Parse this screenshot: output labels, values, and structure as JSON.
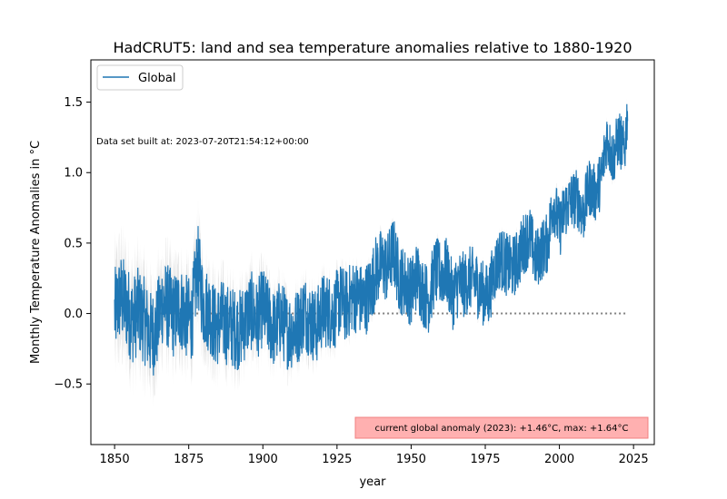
{
  "chart_data": {
    "type": "line",
    "title": "HadCRUT5: land and sea temperature anomalies relative to 1880-1920",
    "xlabel": "year",
    "ylabel": "Monthly Temperature Anomalies in °C",
    "xlim": [
      1842,
      2032
    ],
    "ylim": [
      -0.93,
      1.8
    ],
    "x_ticks": [
      1850,
      1875,
      1900,
      1925,
      1950,
      1975,
      2000,
      2025
    ],
    "y_ticks": [
      -0.5,
      0.0,
      0.5,
      1.0,
      1.5
    ],
    "x_tick_labels": [
      "1850",
      "1875",
      "1900",
      "1925",
      "1950",
      "1975",
      "2000",
      "2025"
    ],
    "y_tick_labels": [
      "−0.5",
      "0.0",
      "0.5",
      "1.0",
      "1.5"
    ],
    "grid": false,
    "legend_position": "top-left",
    "note": "Data set built at: 2023-07-20T21:54:12+00:00",
    "annotation": "current global anomaly (2023): +1.46°C, max: +1.64°C",
    "series": [
      {
        "name": "Global",
        "color": "#1f77b4",
        "style": "monthly line with light-grey uncertainty band",
        "points": [
          [
            1850,
            0.0
          ],
          [
            1852,
            0.12
          ],
          [
            1854,
            0.05
          ],
          [
            1856,
            -0.05
          ],
          [
            1858,
            0.02
          ],
          [
            1860,
            -0.05
          ],
          [
            1862,
            -0.15
          ],
          [
            1864,
            -0.12
          ],
          [
            1866,
            0.08
          ],
          [
            1868,
            0.05
          ],
          [
            1870,
            -0.02
          ],
          [
            1872,
            0.05
          ],
          [
            1874,
            -0.02
          ],
          [
            1876,
            -0.05
          ],
          [
            1878,
            0.35
          ],
          [
            1880,
            0.05
          ],
          [
            1882,
            0.02
          ],
          [
            1884,
            -0.1
          ],
          [
            1886,
            -0.05
          ],
          [
            1888,
            -0.08
          ],
          [
            1890,
            -0.1
          ],
          [
            1892,
            -0.12
          ],
          [
            1894,
            -0.05
          ],
          [
            1896,
            0.02
          ],
          [
            1898,
            -0.05
          ],
          [
            1900,
            0.05
          ],
          [
            1902,
            -0.05
          ],
          [
            1904,
            -0.12
          ],
          [
            1906,
            -0.02
          ],
          [
            1908,
            -0.12
          ],
          [
            1910,
            -0.12
          ],
          [
            1912,
            -0.08
          ],
          [
            1914,
            0.02
          ],
          [
            1916,
            -0.05
          ],
          [
            1918,
            -0.1
          ],
          [
            1920,
            0.02
          ],
          [
            1922,
            0.02
          ],
          [
            1924,
            0.0
          ],
          [
            1926,
            0.1
          ],
          [
            1928,
            0.05
          ],
          [
            1930,
            0.12
          ],
          [
            1932,
            0.12
          ],
          [
            1934,
            0.08
          ],
          [
            1936,
            0.15
          ],
          [
            1938,
            0.3
          ],
          [
            1940,
            0.35
          ],
          [
            1942,
            0.32
          ],
          [
            1944,
            0.45
          ],
          [
            1946,
            0.25
          ],
          [
            1948,
            0.22
          ],
          [
            1950,
            0.15
          ],
          [
            1952,
            0.28
          ],
          [
            1954,
            0.15
          ],
          [
            1956,
            0.1
          ],
          [
            1958,
            0.3
          ],
          [
            1960,
            0.28
          ],
          [
            1962,
            0.3
          ],
          [
            1964,
            0.12
          ],
          [
            1966,
            0.22
          ],
          [
            1968,
            0.2
          ],
          [
            1970,
            0.25
          ],
          [
            1972,
            0.22
          ],
          [
            1974,
            0.15
          ],
          [
            1976,
            0.12
          ],
          [
            1978,
            0.3
          ],
          [
            1980,
            0.4
          ],
          [
            1982,
            0.35
          ],
          [
            1984,
            0.32
          ],
          [
            1986,
            0.38
          ],
          [
            1988,
            0.5
          ],
          [
            1990,
            0.55
          ],
          [
            1992,
            0.38
          ],
          [
            1994,
            0.45
          ],
          [
            1996,
            0.5
          ],
          [
            1998,
            0.8
          ],
          [
            2000,
            0.6
          ],
          [
            2002,
            0.75
          ],
          [
            2004,
            0.8
          ],
          [
            2006,
            0.82
          ],
          [
            2008,
            0.7
          ],
          [
            2010,
            0.9
          ],
          [
            2012,
            0.85
          ],
          [
            2014,
            0.95
          ],
          [
            2016,
            1.25
          ],
          [
            2018,
            1.1
          ],
          [
            2020,
            1.25
          ],
          [
            2022,
            1.15
          ],
          [
            2023,
            1.46
          ]
        ]
      },
      {
        "name": "",
        "color": "#808080",
        "style": "dotted zero reference line",
        "points": [
          [
            1850,
            0.0
          ],
          [
            2023,
            0.0
          ]
        ]
      }
    ]
  }
}
